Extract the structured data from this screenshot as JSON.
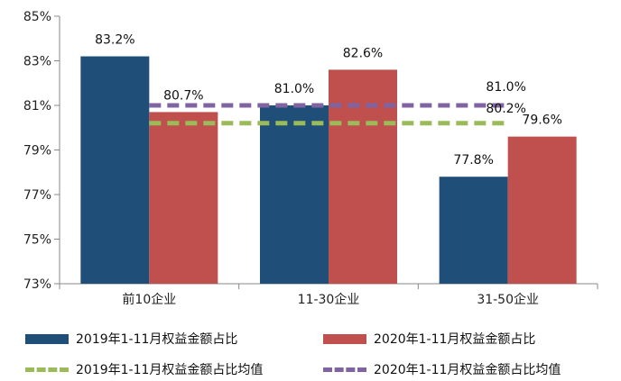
{
  "chart_data": {
    "type": "bar",
    "categories": [
      "前10企业",
      "11-30企业",
      "31-50企业"
    ],
    "series": [
      {
        "name": "2019年1-11月权益金额占比",
        "values": [
          83.2,
          81.0,
          77.8
        ],
        "color": "#1f4e79",
        "labels": [
          "83.2%",
          "81.0%",
          "77.8%"
        ]
      },
      {
        "name": "2020年1-11月权益金额占比",
        "values": [
          80.7,
          82.6,
          79.6
        ],
        "color": "#c0504d",
        "labels": [
          "80.7%",
          "82.6%",
          "79.6%"
        ]
      }
    ],
    "reference_lines": [
      {
        "name": "2019年1-11月权益金额占比均值",
        "value": 80.2,
        "label": "80.2%",
        "color": "#9bbb59",
        "style": "dashed"
      },
      {
        "name": "2020年1-11月权益金额占比均值",
        "value": 81.0,
        "label": "81.0%",
        "color": "#8064a2",
        "style": "dashed"
      }
    ],
    "ylim": [
      73,
      85
    ],
    "yticks": [
      "73%",
      "75%",
      "77%",
      "79%",
      "81%",
      "83%",
      "85%"
    ],
    "grid": false,
    "legend_position": "bottom"
  }
}
